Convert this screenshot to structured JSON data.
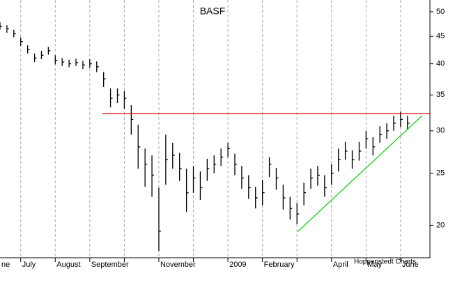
{
  "chart_data": {
    "type": "ohlc",
    "title": "BASF",
    "annotation": "Hoppenstedt Charts",
    "log_y": true,
    "ylim": [
      17.4,
      52.6
    ],
    "yticks": [
      20,
      25,
      30,
      35,
      40,
      45,
      50
    ],
    "xlim": [
      -0.6,
      11.85
    ],
    "xticks": [
      {
        "value": -0.6,
        "label": "ne"
      },
      {
        "value": 0,
        "label": "July"
      },
      {
        "value": 1,
        "label": "August"
      },
      {
        "value": 2,
        "label": "September"
      },
      {
        "value": 4,
        "label": "November"
      },
      {
        "value": 6,
        "label": "2009"
      },
      {
        "value": 7,
        "label": "February"
      },
      {
        "value": 9,
        "label": "April"
      },
      {
        "value": 10,
        "label": "May"
      },
      {
        "value": 11,
        "label": "June"
      }
    ],
    "xgrid": [
      0,
      1,
      2,
      3,
      4,
      5,
      6,
      7,
      8,
      9,
      10,
      11
    ],
    "color": "#000000",
    "x": [
      -0.6,
      -0.4,
      -0.2,
      0,
      0.2,
      0.4,
      0.6,
      0.8,
      1,
      1.2,
      1.4,
      1.6,
      1.8,
      2,
      2.2,
      2.4,
      2.6,
      2.8,
      3,
      3.2,
      3.4,
      3.6,
      3.8,
      4,
      4.2,
      4.4,
      4.6,
      4.8,
      5,
      5.2,
      5.4,
      5.6,
      5.8,
      6,
      6.2,
      6.4,
      6.6,
      6.8,
      7,
      7.2,
      7.4,
      7.6,
      7.8,
      8,
      8.2,
      8.4,
      8.6,
      8.8,
      9,
      9.2,
      9.4,
      9.6,
      9.8,
      10,
      10.2,
      10.4,
      10.6,
      10.8,
      11,
      11.2
    ],
    "high": [
      47.8,
      47.2,
      46.3,
      44.8,
      43.3,
      41.8,
      42.3,
      43.0,
      41.5,
      41.0,
      40.7,
      40.9,
      40.5,
      40.8,
      40.4,
      38.6,
      36.0,
      36.0,
      35.6,
      33.5,
      30.8,
      27.8,
      27.0,
      23.5,
      29.5,
      28.5,
      27.3,
      25.5,
      25.8,
      25.2,
      26.6,
      27.0,
      27.8,
      28.5,
      27.2,
      25.8,
      24.8,
      23.6,
      24.3,
      26.8,
      25.6,
      23.8,
      22.6,
      22.0,
      24.0,
      25.5,
      25.8,
      24.8,
      26.0,
      27.8,
      28.6,
      27.6,
      28.6,
      30.0,
      29.2,
      30.6,
      31.0,
      32.0,
      32.6,
      32.0
    ],
    "low": [
      46.3,
      45.7,
      44.8,
      43.2,
      41.8,
      40.3,
      40.8,
      41.6,
      39.9,
      39.6,
      39.4,
      39.6,
      39.1,
      39.3,
      38.6,
      36.2,
      33.2,
      33.8,
      33.0,
      29.5,
      25.5,
      23.6,
      22.6,
      17.9,
      23.8,
      25.5,
      24.2,
      21.2,
      23.0,
      22.3,
      24.2,
      25.0,
      25.8,
      26.8,
      24.8,
      23.4,
      22.4,
      21.5,
      21.8,
      24.6,
      23.3,
      21.4,
      20.5,
      20.1,
      21.8,
      23.4,
      23.7,
      22.6,
      23.8,
      25.2,
      26.5,
      25.5,
      26.4,
      27.8,
      27.0,
      28.5,
      29.0,
      30.0,
      30.5,
      30.2
    ],
    "close": [
      47.0,
      46.5,
      45.5,
      44.0,
      42.5,
      41.0,
      41.5,
      42.3,
      40.6,
      40.3,
      40.0,
      40.2,
      39.8,
      40.0,
      39.5,
      37.5,
      34.5,
      35.0,
      34.5,
      31.5,
      28.0,
      26.0,
      24.8,
      19.5,
      26.5,
      27.0,
      25.5,
      23.0,
      24.5,
      23.5,
      25.5,
      26.0,
      26.8,
      27.8,
      26.0,
      24.5,
      23.5,
      22.5,
      23.0,
      26.0,
      24.5,
      22.5,
      21.5,
      21.0,
      23.0,
      24.5,
      24.8,
      23.5,
      25.0,
      26.5,
      27.5,
      26.5,
      27.5,
      29.0,
      28.0,
      29.5,
      30.0,
      31.0,
      31.5,
      31.0
    ],
    "lines": [
      {
        "color": "#e00000",
        "x": [
          2.36,
          11.85
        ],
        "y": [
          32.3,
          32.3
        ]
      },
      {
        "color": "#00cc00",
        "x": [
          8.02,
          11.62
        ],
        "y": [
          19.47,
          32.0
        ]
      }
    ]
  }
}
